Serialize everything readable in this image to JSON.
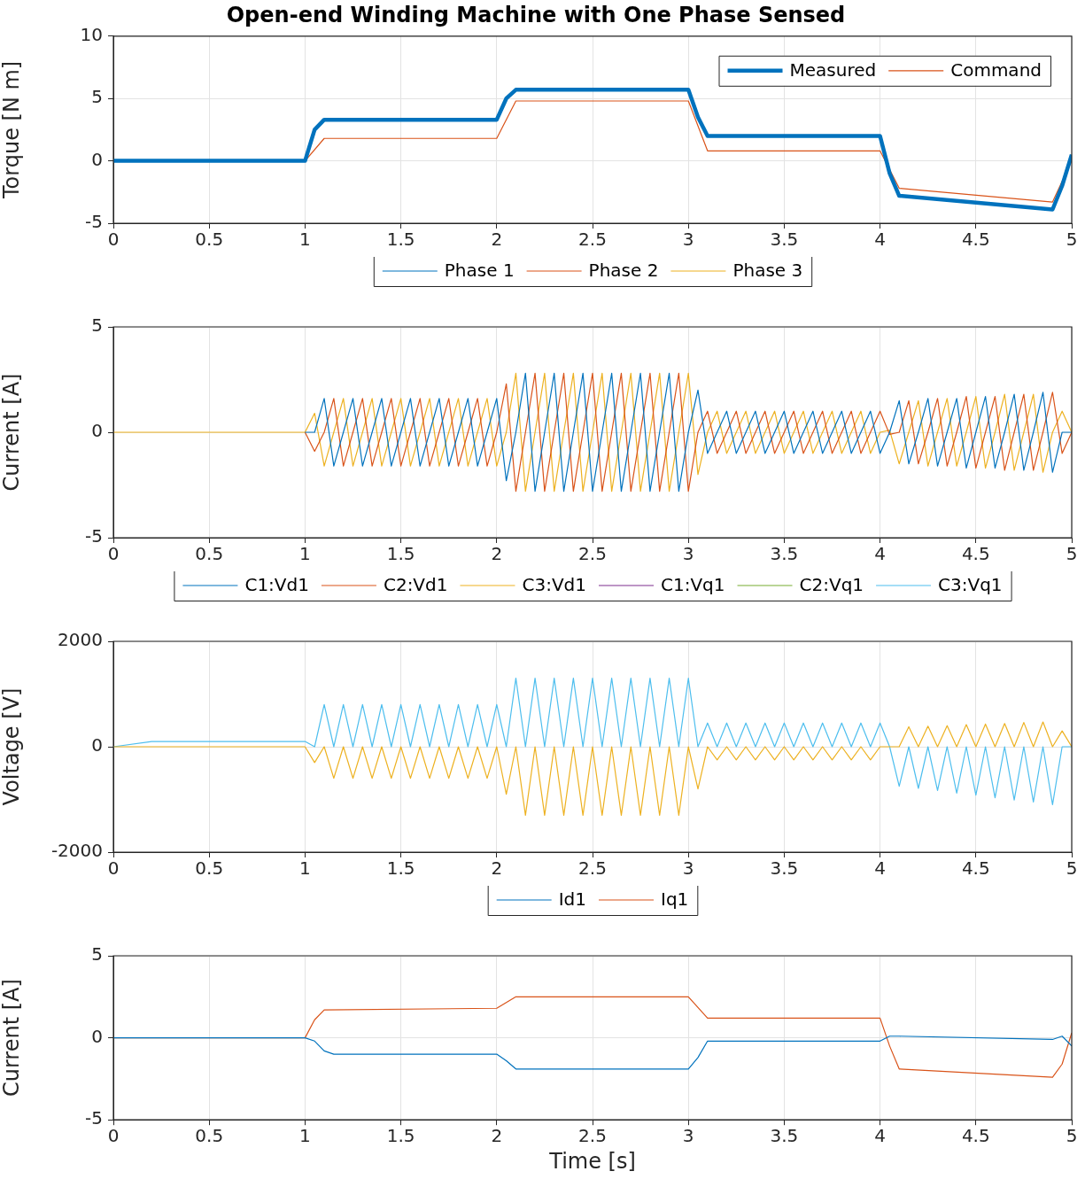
{
  "chart_data": [
    {
      "type": "line",
      "title": "Open-end Winding Machine with One Phase Sensed",
      "ylabel": "Torque [N m]",
      "xlim": [
        0,
        5
      ],
      "ylim": [
        -5,
        10
      ],
      "xticks": [
        0,
        0.5,
        1,
        1.5,
        2,
        2.5,
        3,
        3.5,
        4,
        4.5,
        5
      ],
      "yticks": [
        -5,
        0,
        5,
        10
      ],
      "grid": true,
      "legend": "top right",
      "marker": "none",
      "series": [
        {
          "name": "Measured",
          "color": "#0072bd",
          "x": [
            0,
            1,
            1.05,
            1.1,
            2,
            2.05,
            2.1,
            3,
            3.05,
            3.1,
            4,
            4.05,
            4.1,
            4.9,
            4.95,
            5
          ],
          "values": [
            0,
            0,
            2.5,
            3.3,
            3.3,
            5,
            5.7,
            5.7,
            3.5,
            2,
            2,
            -1,
            -2.8,
            -3.9,
            -2,
            0.5
          ]
        },
        {
          "name": "Command",
          "color": "#d95319",
          "x": [
            0,
            1,
            1.1,
            2,
            2.1,
            3,
            3.1,
            4,
            4.1,
            4.9,
            5
          ],
          "values": [
            0,
            0,
            1.8,
            1.8,
            4.8,
            4.8,
            0.8,
            0.8,
            -2.2,
            -3.3,
            0
          ]
        }
      ]
    },
    {
      "type": "line",
      "ylabel": "Current [A]",
      "xlim": [
        0,
        5
      ],
      "ylim": [
        -5,
        5
      ],
      "xticks": [
        0,
        0.5,
        1,
        1.5,
        2,
        2.5,
        3,
        3.5,
        4,
        4.5,
        5
      ],
      "yticks": [
        -5,
        0,
        5
      ],
      "grid": true,
      "legend": "top",
      "marker": "none",
      "x": [
        0,
        1,
        1.05,
        1.1,
        1.15,
        1.2,
        1.25,
        1.3,
        1.35,
        1.4,
        1.45,
        1.5,
        1.55,
        1.6,
        1.65,
        1.7,
        1.75,
        1.8,
        1.85,
        1.9,
        1.95,
        2,
        2.05,
        2.1,
        2.15,
        2.2,
        2.25,
        2.3,
        2.35,
        2.4,
        2.45,
        2.5,
        2.55,
        2.6,
        2.65,
        2.7,
        2.75,
        2.8,
        2.85,
        2.9,
        2.95,
        3,
        3.05,
        3.1,
        3.15,
        3.2,
        3.25,
        3.3,
        3.35,
        3.4,
        3.45,
        3.5,
        3.55,
        3.6,
        3.65,
        3.7,
        3.75,
        3.8,
        3.85,
        3.9,
        3.95,
        4,
        4.05,
        4.1,
        4.15,
        4.2,
        4.25,
        4.3,
        4.35,
        4.4,
        4.45,
        4.5,
        4.55,
        4.6,
        4.65,
        4.7,
        4.75,
        4.8,
        4.85,
        4.9,
        4.95,
        5
      ],
      "series": [
        {
          "name": "Phase 1",
          "color": "#0072bd",
          "values": [
            null,
            0,
            0,
            1.6,
            -1.6,
            0,
            1.6,
            -1.6,
            0,
            1.6,
            -1.6,
            0,
            1.6,
            -1.6,
            0,
            1.6,
            -1.6,
            0,
            1.6,
            -1.6,
            0,
            1.6,
            -2.3,
            0,
            2.8,
            -2.8,
            0,
            2.8,
            -2.8,
            0,
            2.8,
            -2.8,
            0,
            2.8,
            -2.8,
            0,
            2.8,
            -2.8,
            0,
            2.8,
            -2.8,
            0,
            2.0,
            -1,
            0,
            1,
            -1,
            0,
            1,
            -1,
            0,
            1,
            -1,
            0,
            1,
            -1,
            0,
            1,
            -1,
            0,
            1,
            -1,
            0,
            1.5,
            -1.5,
            0,
            1.6,
            -1.6,
            0,
            1.6,
            -1.7,
            0,
            1.7,
            -1.7,
            0,
            1.8,
            -1.8,
            0,
            1.9,
            -1.9,
            0,
            0
          ]
        },
        {
          "name": "Phase 2",
          "color": "#d95319",
          "values": [
            null,
            0,
            -0.9,
            0,
            1.6,
            -1.6,
            0,
            1.6,
            -1.6,
            0,
            1.6,
            -1.6,
            0,
            1.6,
            -1.6,
            0,
            1.6,
            -1.6,
            0,
            1.6,
            -1.6,
            0,
            2.3,
            -2.8,
            0,
            2.8,
            -2.8,
            0,
            2.8,
            -2.8,
            0,
            2.8,
            -2.8,
            0,
            2.8,
            -2.8,
            0,
            2.8,
            -2.8,
            0,
            2.8,
            -2.8,
            0,
            1,
            -1,
            0,
            1,
            -1,
            0,
            1,
            -1,
            0,
            1,
            -1,
            0,
            1,
            -1,
            0,
            1,
            -1,
            0,
            1,
            -0.1,
            0,
            1.5,
            -1.5,
            0,
            1.6,
            -1.6,
            0,
            1.7,
            -1.7,
            0,
            1.7,
            -1.8,
            0,
            1.8,
            -1.8,
            0,
            1.9,
            -1.0,
            0
          ]
        },
        {
          "name": "Phase 3",
          "color": "#edb120",
          "values": [
            0,
            0,
            0.9,
            -1.6,
            0,
            1.6,
            -1.6,
            0,
            1.6,
            -1.6,
            0,
            1.6,
            -1.6,
            0,
            1.6,
            -1.6,
            0,
            1.6,
            -1.6,
            0,
            1.6,
            -1.6,
            0,
            2.8,
            -2.8,
            0,
            2.8,
            -2.8,
            0,
            2.8,
            -2.8,
            0,
            2.8,
            -2.8,
            0,
            2.8,
            -2.8,
            0,
            2.8,
            -2.8,
            0,
            2.8,
            -2.0,
            0,
            1,
            -1,
            0,
            1,
            -1,
            0,
            1,
            -1,
            0,
            1,
            -1,
            0,
            1,
            -1,
            0,
            1,
            -1,
            0,
            0.1,
            -1.5,
            0,
            1.5,
            -1.6,
            0,
            1.6,
            -1.6,
            0,
            1.7,
            -1.7,
            0,
            1.8,
            -1.8,
            0,
            1.8,
            -1.9,
            0,
            1.0,
            0
          ]
        }
      ]
    },
    {
      "type": "line",
      "ylabel": "Voltage [V]",
      "xlim": [
        0,
        5
      ],
      "ylim": [
        -2000,
        2000
      ],
      "xticks": [
        0,
        0.5,
        1,
        1.5,
        2,
        2.5,
        3,
        3.5,
        4,
        4.5,
        5
      ],
      "yticks": [
        -2000,
        0,
        2000
      ],
      "grid": true,
      "legend": "top",
      "marker": "none",
      "x": [
        0,
        1,
        1.05,
        1.1,
        1.15,
        1.2,
        1.25,
        1.3,
        1.35,
        1.4,
        1.45,
        1.5,
        1.55,
        1.6,
        1.65,
        1.7,
        1.75,
        1.8,
        1.85,
        1.9,
        1.95,
        2,
        2.05,
        2.1,
        2.15,
        2.2,
        2.25,
        2.3,
        2.35,
        2.4,
        2.45,
        2.5,
        2.55,
        2.6,
        2.65,
        2.7,
        2.75,
        2.8,
        2.85,
        2.9,
        2.95,
        3,
        3.05,
        3.1,
        3.15,
        3.2,
        3.25,
        3.3,
        3.35,
        3.4,
        3.45,
        3.5,
        3.55,
        3.6,
        3.65,
        3.7,
        3.75,
        3.8,
        3.85,
        3.9,
        3.95,
        4,
        4.05,
        4.1,
        4.15,
        4.2,
        4.25,
        4.3,
        4.35,
        4.4,
        4.45,
        4.5,
        4.55,
        4.6,
        4.65,
        4.7,
        4.75,
        4.8,
        4.85,
        4.9,
        4.95,
        5
      ],
      "series": [
        {
          "name": "C1:Vd1",
          "color": "#0072bd",
          "values": [
            null,
            null,
            null,
            null,
            null,
            null,
            null,
            null,
            null,
            null,
            null,
            null,
            null,
            null,
            null,
            null,
            null,
            null,
            null,
            null,
            null,
            null,
            null,
            null,
            null,
            null,
            null,
            null,
            null,
            null,
            null,
            null,
            null,
            null,
            null,
            null,
            null,
            null,
            null,
            null,
            null,
            null,
            null,
            null,
            null,
            null,
            null,
            null,
            null,
            null,
            null,
            null,
            null,
            null,
            null,
            null,
            null,
            null,
            null,
            null,
            null,
            null,
            null,
            null,
            null,
            null,
            null,
            null,
            null,
            null,
            null,
            null,
            null,
            null,
            null,
            null,
            null,
            null,
            null,
            null,
            null,
            null
          ]
        },
        {
          "name": "C2:Vd1",
          "color": "#d95319",
          "values": [
            null,
            null,
            null,
            null,
            null,
            null,
            null,
            null,
            null,
            null,
            null,
            null,
            null,
            null,
            null,
            null,
            null,
            null,
            null,
            null,
            null,
            null,
            null,
            null,
            null,
            null,
            null,
            null,
            null,
            null,
            null,
            null,
            null,
            null,
            null,
            null,
            null,
            null,
            null,
            null,
            null,
            null,
            null,
            null,
            null,
            null,
            null,
            null,
            null,
            null,
            null,
            null,
            null,
            null,
            null,
            null,
            null,
            null,
            null,
            null,
            null,
            null,
            null,
            null,
            null,
            null,
            null,
            null,
            null,
            null,
            null,
            null,
            null,
            null,
            null,
            null,
            null,
            null,
            null,
            null,
            null,
            null
          ]
        },
        {
          "name": "C3:Vd1",
          "color": "#edb120",
          "values": [
            0,
            0,
            -300,
            0,
            -600,
            0,
            -600,
            0,
            -600,
            0,
            -600,
            0,
            -600,
            0,
            -600,
            0,
            -600,
            0,
            -600,
            0,
            -600,
            0,
            -900,
            0,
            -1300,
            0,
            -1300,
            0,
            -1300,
            0,
            -1300,
            0,
            -1300,
            0,
            -1300,
            0,
            -1300,
            0,
            -1300,
            0,
            -1300,
            0,
            -800,
            0,
            -250,
            0,
            -250,
            0,
            -250,
            0,
            -250,
            0,
            -250,
            0,
            -250,
            0,
            -250,
            0,
            -250,
            0,
            -250,
            0,
            0,
            0,
            380,
            0,
            390,
            0,
            400,
            0,
            420,
            0,
            430,
            0,
            440,
            0,
            460,
            0,
            470,
            0,
            300,
            0
          ]
        },
        {
          "name": "C1:Vq1",
          "color": "#7e2f8e",
          "values": [
            null,
            null,
            null,
            null,
            null,
            null,
            null,
            null,
            null,
            null,
            null,
            null,
            null,
            null,
            null,
            null,
            null,
            null,
            null,
            null,
            null,
            null,
            null,
            null,
            null,
            null,
            null,
            null,
            null,
            null,
            null,
            null,
            null,
            null,
            null,
            null,
            null,
            null,
            null,
            null,
            null,
            null,
            null,
            null,
            null,
            null,
            null,
            null,
            null,
            null,
            null,
            null,
            null,
            null,
            null,
            null,
            null,
            null,
            null,
            null,
            null,
            null,
            null,
            null,
            null,
            null,
            null,
            null,
            null,
            null,
            null,
            null,
            null,
            null,
            null,
            null,
            null,
            null,
            null,
            null,
            null,
            null
          ]
        },
        {
          "name": "C2:Vq1",
          "color": "#77ac30",
          "values": [
            null,
            null,
            null,
            null,
            null,
            null,
            null,
            null,
            null,
            null,
            null,
            null,
            null,
            null,
            null,
            null,
            null,
            null,
            null,
            null,
            null,
            null,
            null,
            null,
            null,
            null,
            null,
            null,
            null,
            null,
            null,
            null,
            null,
            null,
            null,
            null,
            null,
            null,
            null,
            null,
            null,
            null,
            null,
            null,
            null,
            null,
            null,
            null,
            null,
            null,
            null,
            null,
            null,
            null,
            null,
            null,
            null,
            null,
            null,
            null,
            null,
            null,
            null,
            null,
            null,
            null,
            null,
            null,
            null,
            null,
            null,
            null,
            null,
            null,
            null,
            null,
            null,
            null,
            null,
            null,
            null,
            null
          ]
        },
        {
          "name": "C3:Vq1",
          "color": "#4dbeee",
          "x": [
            0,
            0.2,
            1,
            1.05,
            1.1,
            1.15,
            1.2,
            1.25,
            1.3,
            1.35,
            1.4,
            1.45,
            1.5,
            1.55,
            1.6,
            1.65,
            1.7,
            1.75,
            1.8,
            1.85,
            1.9,
            1.95,
            2,
            2.05,
            2.1,
            2.15,
            2.2,
            2.25,
            2.3,
            2.35,
            2.4,
            2.45,
            2.5,
            2.55,
            2.6,
            2.65,
            2.7,
            2.75,
            2.8,
            2.85,
            2.9,
            2.95,
            3,
            3.05,
            3.1,
            3.15,
            3.2,
            3.25,
            3.3,
            3.35,
            3.4,
            3.45,
            3.5,
            3.55,
            3.6,
            3.65,
            3.7,
            3.75,
            3.8,
            3.85,
            3.9,
            3.95,
            4,
            4.05,
            4.1,
            4.15,
            4.2,
            4.25,
            4.3,
            4.35,
            4.4,
            4.45,
            4.5,
            4.55,
            4.6,
            4.65,
            4.7,
            4.75,
            4.8,
            4.85,
            4.9,
            4.95,
            5
          ],
          "values": [
            0,
            100,
            100,
            0,
            800,
            0,
            800,
            0,
            800,
            0,
            800,
            0,
            800,
            0,
            800,
            0,
            800,
            0,
            800,
            0,
            800,
            0,
            800,
            0,
            1300,
            0,
            1300,
            0,
            1300,
            0,
            1300,
            0,
            1300,
            0,
            1300,
            0,
            1300,
            0,
            1300,
            0,
            1300,
            0,
            1300,
            0,
            450,
            0,
            450,
            0,
            450,
            0,
            450,
            0,
            450,
            0,
            450,
            0,
            450,
            0,
            450,
            0,
            450,
            0,
            450,
            0,
            -750,
            0,
            -790,
            0,
            -830,
            0,
            -880,
            0,
            -920,
            0,
            -970,
            0,
            -1010,
            0,
            -1050,
            0,
            -1100,
            0,
            0
          ]
        }
      ]
    },
    {
      "type": "line",
      "ylabel": "Current [A]",
      "xlabel": "Time [s]",
      "xlim": [
        0,
        5
      ],
      "ylim": [
        -5,
        5
      ],
      "xticks": [
        0,
        0.5,
        1,
        1.5,
        2,
        2.5,
        3,
        3.5,
        4,
        4.5,
        5
      ],
      "yticks": [
        -5,
        0,
        5
      ],
      "grid": true,
      "legend": "top",
      "marker": "none",
      "series": [
        {
          "name": "Id1",
          "color": "#0072bd",
          "x": [
            0,
            1,
            1.05,
            1.1,
            1.15,
            2,
            2.05,
            2.1,
            3,
            3.05,
            3.1,
            4,
            4.05,
            4.1,
            4.9,
            4.95,
            5
          ],
          "values": [
            0,
            0,
            -0.2,
            -0.8,
            -1,
            -1,
            -1.4,
            -1.9,
            -1.9,
            -1.2,
            -0.2,
            -0.2,
            0.1,
            0.1,
            -0.1,
            0.1,
            -0.5
          ]
        },
        {
          "name": "Iq1",
          "color": "#d95319",
          "x": [
            0,
            1,
            1.05,
            1.1,
            2,
            2.1,
            3,
            3.1,
            4,
            4.05,
            4.1,
            4.9,
            4.95,
            5
          ],
          "values": [
            0,
            0,
            1.1,
            1.7,
            1.8,
            2.5,
            2.5,
            1.2,
            1.2,
            -0.5,
            -1.9,
            -2.4,
            -1.6,
            0.3
          ]
        }
      ]
    }
  ]
}
